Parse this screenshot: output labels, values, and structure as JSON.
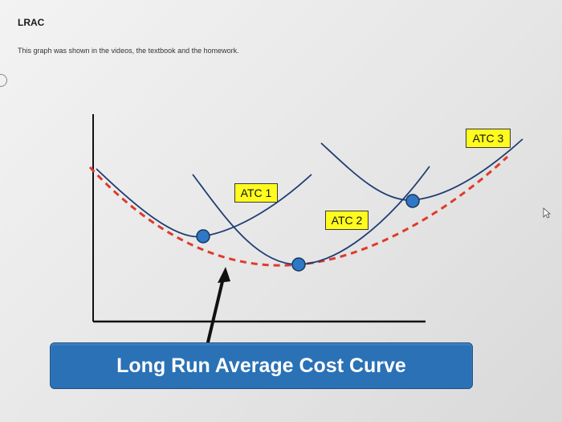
{
  "page": {
    "title": "LRAC",
    "description": "This graph was shown in the videos, the textbook and the homework."
  },
  "graph": {
    "labels": {
      "atc1": "ATC 1",
      "atc2": "ATC 2",
      "atc3": "ATC 3"
    },
    "caption": "Long Run Average Cost Curve"
  },
  "colors": {
    "atc_curve": "#1f3e73",
    "lrac_dashed": "#e03a2c",
    "tangent_point": "#2f78c6",
    "label_bg": "#fffb1f",
    "caption_bg": "#2a71b6"
  },
  "icons": {
    "cursor": "mouse-pointer-icon"
  }
}
